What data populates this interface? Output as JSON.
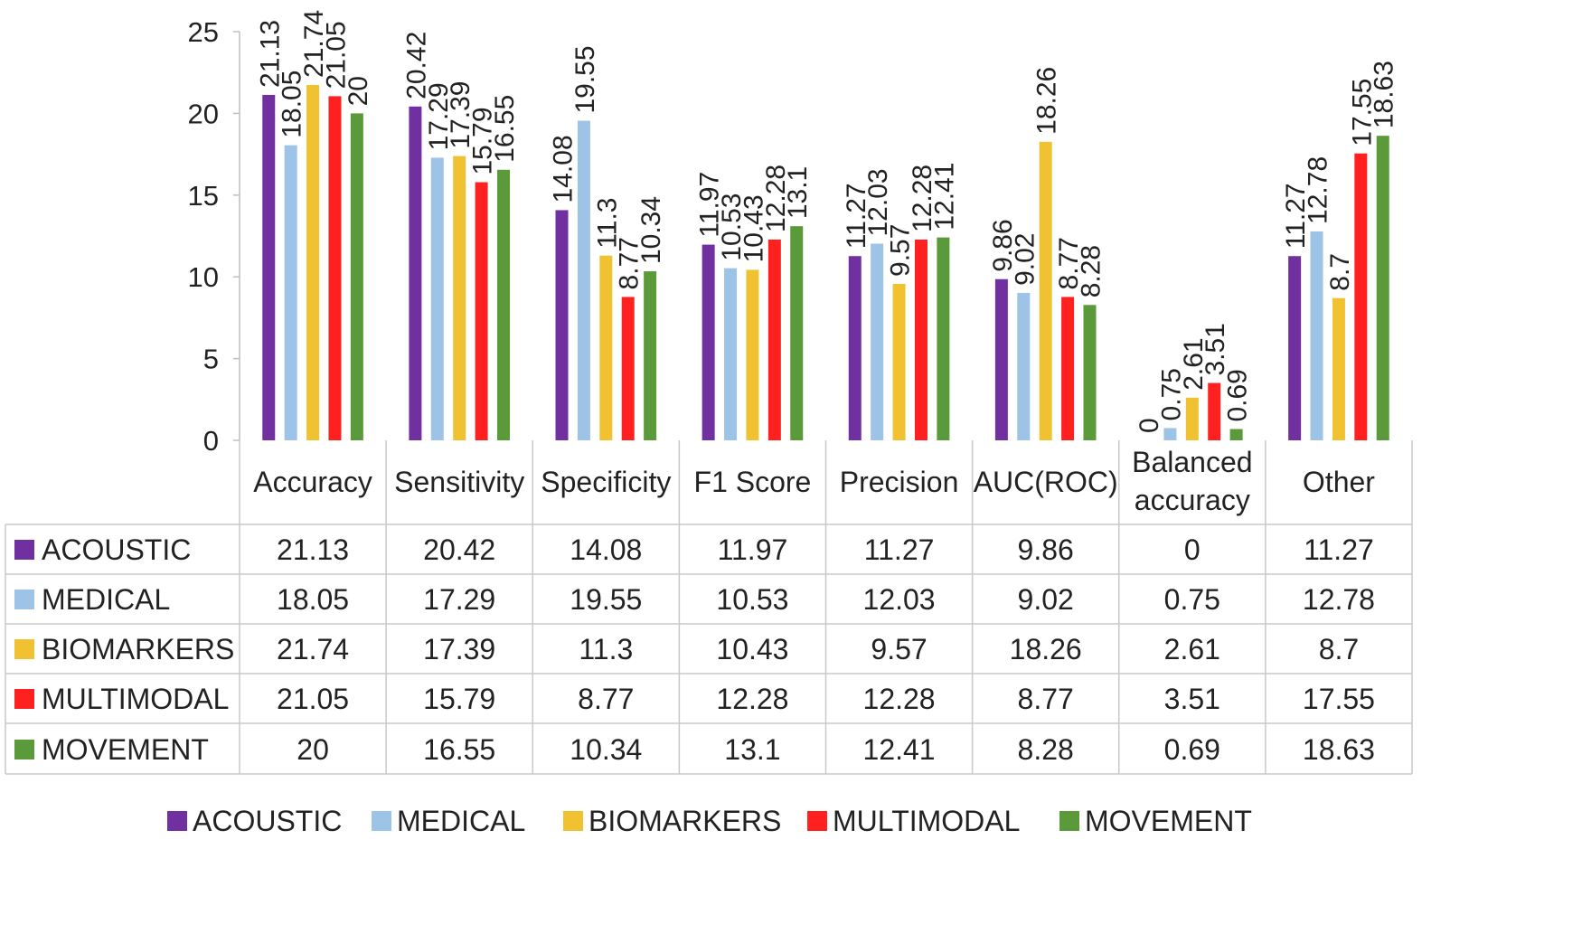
{
  "chart_data": {
    "type": "bar",
    "title": "",
    "xlabel": "",
    "ylabel": "",
    "ylim": [
      0,
      25
    ],
    "yticks": [
      0,
      5,
      10,
      15,
      20,
      25
    ],
    "categories": [
      "Accuracy",
      "Sensitivity",
      "Specificity",
      "F1 Score",
      "Precision",
      "AUC(ROC)",
      "Balanced accuracy",
      "Other"
    ],
    "series": [
      {
        "name": "ACOUSTIC",
        "color": "#7030A0",
        "values": [
          21.13,
          20.42,
          14.08,
          11.97,
          11.27,
          9.86,
          0,
          11.27
        ]
      },
      {
        "name": "MEDICAL",
        "color": "#9DC3E6",
        "values": [
          18.05,
          17.29,
          19.55,
          10.53,
          12.03,
          9.02,
          0.75,
          12.78
        ]
      },
      {
        "name": "BIOMARKERS",
        "color": "#F0C232",
        "values": [
          21.74,
          17.39,
          11.3,
          10.43,
          9.57,
          18.26,
          2.61,
          8.7
        ]
      },
      {
        "name": "MULTIMODAL",
        "color": "#FF2020",
        "values": [
          21.05,
          15.79,
          8.77,
          12.28,
          12.28,
          8.77,
          3.51,
          17.55
        ]
      },
      {
        "name": "MOVEMENT",
        "color": "#5B9A3A",
        "values": [
          20,
          16.55,
          10.34,
          13.1,
          12.41,
          8.28,
          0.69,
          18.63
        ]
      }
    ],
    "legend_position": "bottom",
    "grid": false,
    "has_data_table": true
  }
}
